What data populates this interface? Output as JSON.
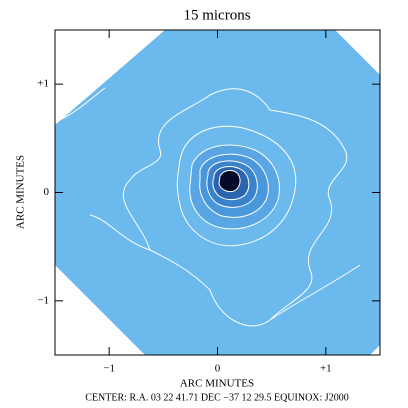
{
  "chart_data": {
    "type": "image",
    "title": "15 microns",
    "xlabel": "ARC MINUTES",
    "ylabel": "ARC MINUTES",
    "caption": "CENTER: R.A. 03 22 41.71 DEC −37 12 29.5   EQUINOX: J2000",
    "xlim": [
      -1.5,
      1.5
    ],
    "ylim": [
      -1.5,
      1.5
    ],
    "xticks": [
      {
        "value": -1,
        "label": "−1"
      },
      0,
      {
        "value": 1,
        "label": "+1"
      }
    ],
    "yticks": [
      {
        "value": -1,
        "label": "−1"
      },
      0,
      {
        "value": 1,
        "label": "+1"
      }
    ]
  }
}
